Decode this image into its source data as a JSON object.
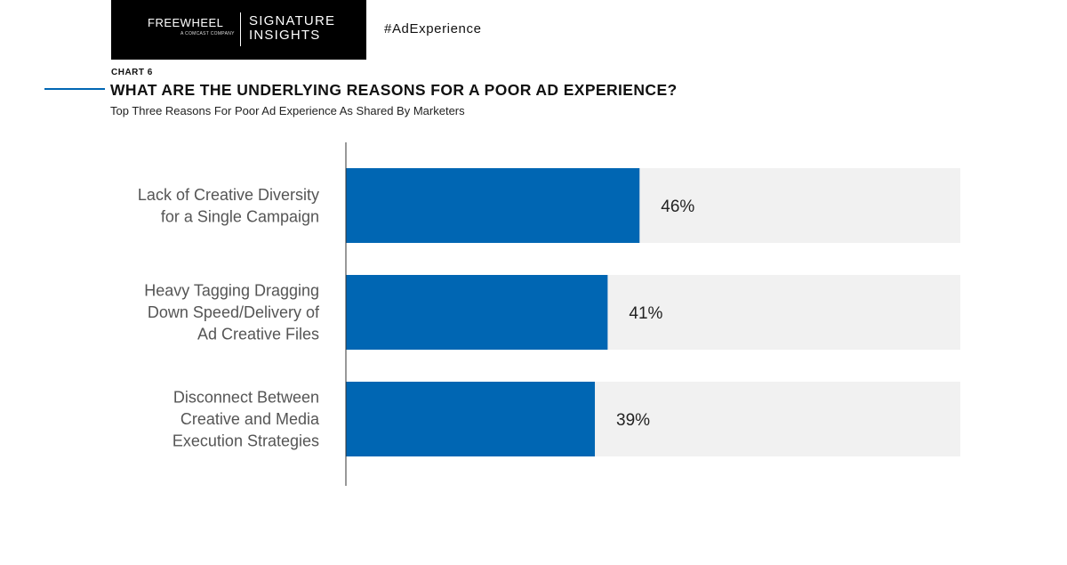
{
  "header": {
    "brand": "FREEWHEEL",
    "brand_sub": "A COMCAST COMPANY",
    "signature_line1": "SIGNATURE",
    "signature_line2": "INSIGHTS",
    "hashtag": "#AdExperience"
  },
  "chart_number": "CHART 6",
  "colors": {
    "bar": "#0066b3",
    "track": "#f1f1f1",
    "accent": "#0066b3"
  },
  "chart_data": {
    "type": "bar",
    "orientation": "horizontal",
    "title": "WHAT ARE THE UNDERLYING REASONS FOR A POOR AD EXPERIENCE?",
    "subtitle": "Top Three Reasons For Poor Ad Experience As Shared By Marketers",
    "categories": [
      [
        "Lack of Creative Diversity",
        "for a Single Campaign"
      ],
      [
        "Heavy Tagging Dragging",
        "Down Speed/Delivery of",
        "Ad Creative Files"
      ],
      [
        "Disconnect Between",
        "Creative and Media",
        "Execution Strategies"
      ]
    ],
    "values": [
      46,
      41,
      39
    ],
    "value_labels": [
      "46%",
      "41%",
      "39%"
    ],
    "xlim": [
      0,
      100
    ],
    "grid": false,
    "legend": "none"
  }
}
